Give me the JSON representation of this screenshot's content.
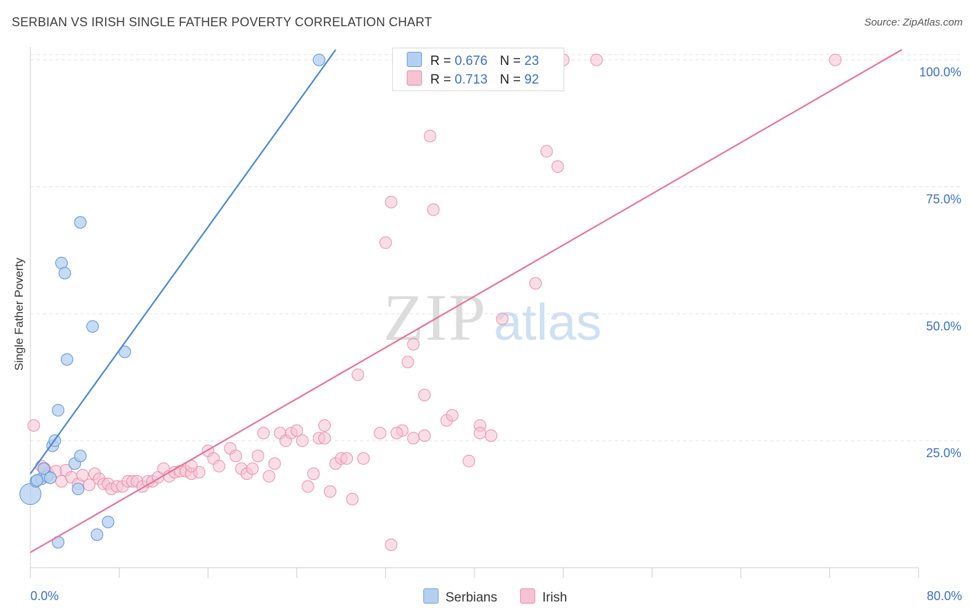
{
  "title": "SERBIAN VS IRISH SINGLE FATHER POVERTY CORRELATION CHART",
  "source": "Source: ZipAtlas.com",
  "watermark": {
    "zip": "ZIP",
    "atlas": "atlas"
  },
  "legend": {
    "r_label": "R = ",
    "n_label": "N = ",
    "entries": [
      {
        "r": "0.676",
        "n": "23",
        "color": "#6aa2e0",
        "fill": "#b5cff0"
      },
      {
        "r": "0.713",
        "n": "92",
        "color": "#e98fab",
        "fill": "#f6c3d3"
      }
    ]
  },
  "bottom_legend": [
    "Serbians",
    "Irish"
  ],
  "chart_data": {
    "type": "scatter",
    "title": "SERBIAN VS IRISH SINGLE FATHER POVERTY CORRELATION CHART",
    "xlabel": "",
    "ylabel": "Single Father Poverty",
    "xlim": [
      0,
      80
    ],
    "ylim": [
      0,
      102
    ],
    "x_tick_labels": [
      "0.0%",
      "80.0%"
    ],
    "y_ticks": [
      25,
      50,
      75,
      100
    ],
    "y_tick_labels": [
      "25.0%",
      "50.0%",
      "75.0%",
      "100.0%"
    ],
    "grid": true,
    "legend_position": "top-center",
    "series": [
      {
        "name": "Serbians",
        "color": "#4a87d6",
        "r": 0.676,
        "n": 23,
        "trend": [
          [
            0,
            18.5
          ],
          [
            27.5,
            102
          ]
        ],
        "points": [
          [
            0,
            14.5,
            1.8
          ],
          [
            0.5,
            17,
            1
          ],
          [
            1,
            17.5,
            1
          ],
          [
            1.5,
            18,
            1
          ],
          [
            1.2,
            19.5,
            1
          ],
          [
            1.8,
            17.7,
            1
          ],
          [
            2,
            24,
            1
          ],
          [
            2.2,
            25,
            1
          ],
          [
            2.5,
            31,
            1
          ],
          [
            2.8,
            60,
            1
          ],
          [
            3.1,
            58,
            1
          ],
          [
            3.3,
            41,
            1
          ],
          [
            4,
            20.5,
            1
          ],
          [
            4.3,
            15.5,
            1
          ],
          [
            4.5,
            22,
            1
          ],
          [
            4.5,
            68,
            1
          ],
          [
            5.6,
            47.5,
            1
          ],
          [
            6,
            6.5,
            1
          ],
          [
            7,
            9,
            1
          ],
          [
            8.5,
            42.5,
            1
          ],
          [
            2.5,
            5,
            1
          ],
          [
            26,
            100,
            1
          ],
          [
            0.6,
            17.2,
            1
          ]
        ]
      },
      {
        "name": "Irish",
        "color": "#e7739a",
        "r": 0.713,
        "n": 92,
        "trend": [
          [
            0,
            3
          ],
          [
            78.5,
            102
          ]
        ],
        "points": [
          [
            0.3,
            28
          ],
          [
            1,
            20
          ],
          [
            1.3,
            19.5
          ],
          [
            1.6,
            18.5
          ],
          [
            2.3,
            19
          ],
          [
            2.8,
            17
          ],
          [
            3.2,
            19.2
          ],
          [
            3.7,
            17.8
          ],
          [
            4.3,
            16.5
          ],
          [
            4.7,
            18.2
          ],
          [
            5.3,
            16.3
          ],
          [
            5.8,
            18.5
          ],
          [
            6.2,
            17.5
          ],
          [
            6.6,
            16.5
          ],
          [
            7.0,
            16.5
          ],
          [
            7.3,
            15.5
          ],
          [
            7.8,
            16
          ],
          [
            8.3,
            16
          ],
          [
            8.8,
            17
          ],
          [
            9.2,
            17
          ],
          [
            9.6,
            17
          ],
          [
            10.1,
            16
          ],
          [
            10.6,
            17
          ],
          [
            11.0,
            17
          ],
          [
            11.5,
            17.8
          ],
          [
            12.0,
            19.5
          ],
          [
            12.5,
            18
          ],
          [
            13.0,
            18.8
          ],
          [
            13.5,
            19
          ],
          [
            14.0,
            19
          ],
          [
            14.5,
            18.5
          ],
          [
            15.2,
            18.8
          ],
          [
            16.0,
            23
          ],
          [
            16.5,
            21.5
          ],
          [
            17.0,
            20
          ],
          [
            18.0,
            23.5
          ],
          [
            18.5,
            22
          ],
          [
            19.0,
            19.5
          ],
          [
            19.5,
            18.5
          ],
          [
            20.0,
            19.5
          ],
          [
            20.5,
            22
          ],
          [
            21.0,
            26.5
          ],
          [
            21.5,
            18
          ],
          [
            22.0,
            20.5
          ],
          [
            22.5,
            26.5
          ],
          [
            23.0,
            25
          ],
          [
            23.5,
            26.5
          ],
          [
            24.0,
            27
          ],
          [
            24.5,
            25
          ],
          [
            25.0,
            16
          ],
          [
            25.5,
            18.5
          ],
          [
            26.0,
            25.5
          ],
          [
            26.5,
            28
          ],
          [
            27.0,
            15
          ],
          [
            27.5,
            20.5
          ],
          [
            28.0,
            21.5
          ],
          [
            28.5,
            21.5
          ],
          [
            29.0,
            13.5
          ],
          [
            31.5,
            26.5
          ],
          [
            32.5,
            4.5
          ],
          [
            33.5,
            27
          ],
          [
            34.5,
            25.5
          ],
          [
            35.5,
            26
          ],
          [
            37.5,
            29
          ],
          [
            38.0,
            30
          ],
          [
            39.5,
            21
          ],
          [
            40.5,
            28
          ],
          [
            41.5,
            26
          ],
          [
            29.5,
            38
          ],
          [
            32.0,
            64
          ],
          [
            32.5,
            72
          ],
          [
            34.0,
            40.5
          ],
          [
            34.5,
            44
          ],
          [
            35.5,
            34
          ],
          [
            36.0,
            85
          ],
          [
            36.3,
            70.5
          ],
          [
            42.5,
            49
          ],
          [
            45.5,
            56
          ],
          [
            46.5,
            82
          ],
          [
            47.5,
            79
          ],
          [
            36.5,
            100
          ],
          [
            38.5,
            100
          ],
          [
            41.5,
            100
          ],
          [
            43.5,
            100
          ],
          [
            48.0,
            100
          ],
          [
            51.0,
            100
          ],
          [
            72.5,
            100
          ],
          [
            26.5,
            25.5
          ],
          [
            33.0,
            26.5
          ],
          [
            30.0,
            21.5
          ],
          [
            40.5,
            26.5
          ],
          [
            14.5,
            20
          ]
        ]
      }
    ]
  }
}
